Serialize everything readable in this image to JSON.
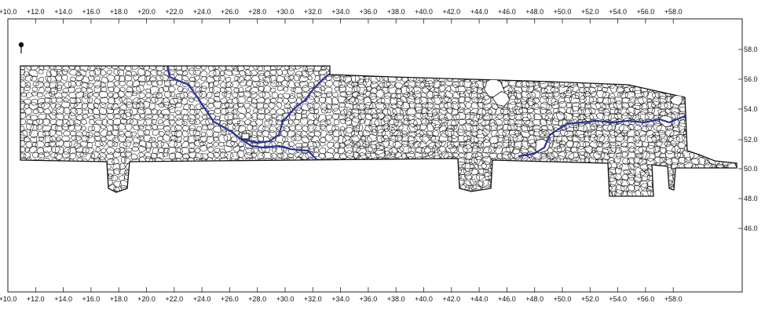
{
  "drawing": {
    "x_axis_labels": [
      "+10.0",
      "+12.0",
      "+14.0",
      "+16.0",
      "+18.0",
      "+20.0",
      "+22.0",
      "+24.0",
      "+26.0",
      "+28.0",
      "+30.0",
      "+32.0",
      "+34.0",
      "+36.0",
      "+38.0",
      "+40.0",
      "+42.0",
      "+44.0",
      "+46.0",
      "+48.0",
      "+50.0",
      "+52.0",
      "+54.0",
      "+56.0",
      "+58.0"
    ],
    "y_axis_labels": [
      "58.0",
      "56.0",
      "54.0",
      "52.0",
      "50.0",
      "48.0",
      "46.0"
    ],
    "line_color": "#111111",
    "accent_line_color": "#2a3399",
    "marker_icon": "pin-marker-icon"
  }
}
